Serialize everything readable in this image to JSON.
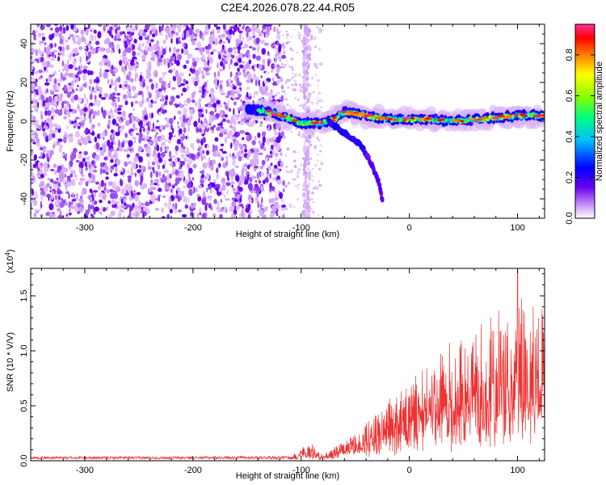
{
  "title": "C2E4.2026.078.22.44.R05",
  "chart_data": [
    {
      "type": "heatmap",
      "id": "spectrogram",
      "xlabel": "Height of straight line (km)",
      "ylabel": "Frequency (Hz)",
      "xlim": [
        -350,
        125
      ],
      "ylim": [
        -50,
        50
      ],
      "x_ticks": [
        -300,
        -200,
        -100,
        0,
        100
      ],
      "x_tick_labels": [
        "-300",
        "-200",
        "-100",
        "0",
        "100"
      ],
      "y_ticks": [
        -40,
        -20,
        0,
        20,
        40
      ],
      "y_tick_labels": [
        "-40",
        "-20",
        "0",
        "20",
        "40"
      ],
      "colorbar": {
        "label": "Normalized spectral amplitude",
        "range": [
          0.0,
          0.95
        ],
        "ticks": [
          0.0,
          0.2,
          0.4,
          0.6,
          0.8
        ],
        "tick_labels": [
          "0.0",
          "0.2",
          "0.4",
          "0.6",
          "0.8"
        ],
        "colormap": [
          "#ffffff",
          "#d8b0f8",
          "#6a00f0",
          "#0000ff",
          "#00c0ff",
          "#00ff80",
          "#80ff00",
          "#ffff00",
          "#ff8000",
          "#ff0000",
          "#ff3399"
        ]
      },
      "features": {
        "noise_region_x": [
          -350,
          -125
        ],
        "noise_column_x": -95,
        "signal_track": [
          {
            "x": -150,
            "f": 6
          },
          {
            "x": -130,
            "f": 5
          },
          {
            "x": -110,
            "f": 1
          },
          {
            "x": -100,
            "f": -1
          },
          {
            "x": -90,
            "f": -1
          },
          {
            "x": -80,
            "f": -1
          },
          {
            "x": -70,
            "f": 1
          },
          {
            "x": -60,
            "f": 5
          },
          {
            "x": -40,
            "f": 3
          },
          {
            "x": -20,
            "f": 1
          },
          {
            "x": 0,
            "f": 1
          },
          {
            "x": 20,
            "f": 1
          },
          {
            "x": 40,
            "f": 0
          },
          {
            "x": 60,
            "f": 1
          },
          {
            "x": 80,
            "f": 2
          },
          {
            "x": 100,
            "f": 3
          },
          {
            "x": 125,
            "f": 3
          }
        ],
        "descending_branch": [
          {
            "x": -75,
            "f": 0
          },
          {
            "x": -60,
            "f": -6
          },
          {
            "x": -45,
            "f": -12
          },
          {
            "x": -35,
            "f": -22
          },
          {
            "x": -28,
            "f": -32
          },
          {
            "x": -25,
            "f": -40
          }
        ]
      }
    },
    {
      "type": "line",
      "id": "snr",
      "xlabel": "Height of straight line (km)",
      "ylabel": "SNR (10 * V/V)",
      "y_multiplier_label": "(x10",
      "y_multiplier_exp": "4",
      "y_multiplier_close": ")",
      "xlim": [
        -350,
        125
      ],
      "ylim": [
        0.0,
        1.75
      ],
      "x_ticks": [
        -300,
        -200,
        -100,
        0,
        100
      ],
      "x_tick_labels": [
        "-300",
        "-200",
        "-100",
        "0",
        "100"
      ],
      "y_ticks": [
        0.0,
        0.5,
        1.0,
        1.5
      ],
      "y_tick_labels": [
        "0.0",
        "0.5",
        "1.0",
        "1.5"
      ],
      "series": [
        {
          "name": "SNR",
          "color": "#ee3333",
          "envelope": [
            {
              "x": -350,
              "y": 0.035
            },
            {
              "x": -200,
              "y": 0.035
            },
            {
              "x": -110,
              "y": 0.04
            },
            {
              "x": -100,
              "y": 0.12
            },
            {
              "x": -90,
              "y": 0.16
            },
            {
              "x": -80,
              "y": 0.06
            },
            {
              "x": -60,
              "y": 0.18
            },
            {
              "x": -40,
              "y": 0.35
            },
            {
              "x": -20,
              "y": 0.55
            },
            {
              "x": 0,
              "y": 0.7
            },
            {
              "x": 20,
              "y": 0.95
            },
            {
              "x": 40,
              "y": 1.1
            },
            {
              "x": 60,
              "y": 1.2
            },
            {
              "x": 80,
              "y": 1.35
            },
            {
              "x": 100,
              "y": 1.5
            },
            {
              "x": 125,
              "y": 1.4
            }
          ],
          "peak": {
            "x": 100,
            "y": 1.72
          }
        }
      ]
    }
  ]
}
